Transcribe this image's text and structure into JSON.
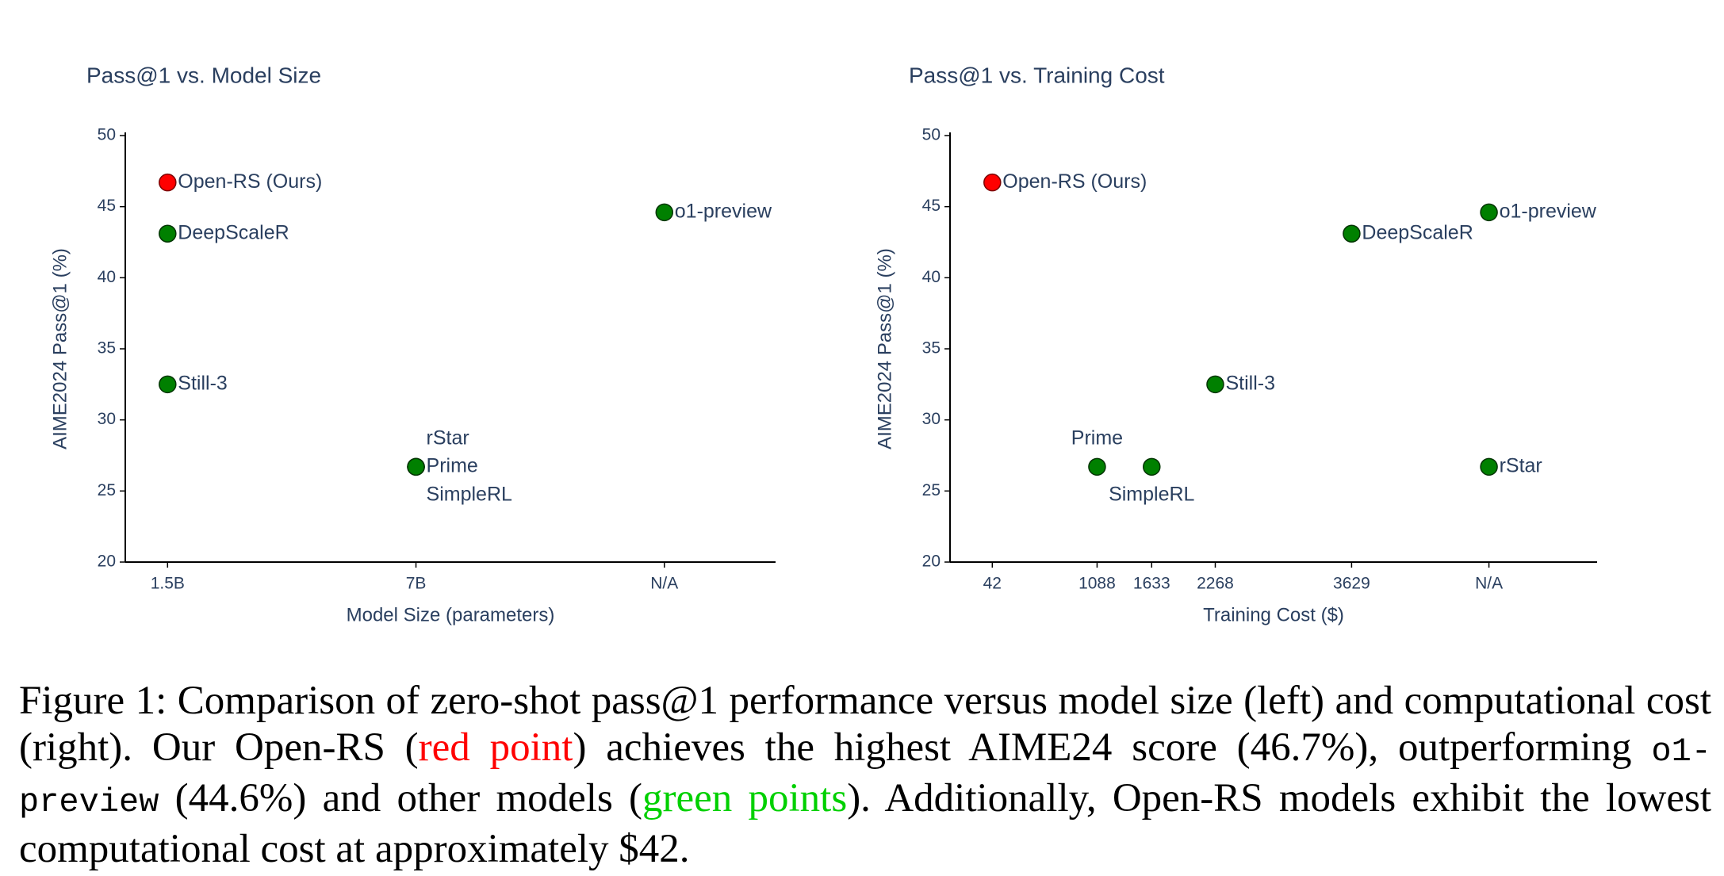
{
  "chart_data": [
    {
      "type": "scatter",
      "title": "Pass@1 vs. Model Size",
      "xlabel": "Model Size (parameters)",
      "ylabel": "AIME2024 Pass@1 (%)",
      "categories": [
        "1.5B",
        "7B",
        "N/A"
      ],
      "ylim": [
        20,
        50
      ],
      "yticks": [
        20,
        25,
        30,
        35,
        40,
        45,
        50
      ],
      "points": [
        {
          "label": "Open-RS (Ours)",
          "x": "1.5B",
          "y": 46.7,
          "color": "#ff0000",
          "label_position": "right"
        },
        {
          "label": "DeepScaleR",
          "x": "1.5B",
          "y": 43.1,
          "color": "#008000",
          "label_position": "right"
        },
        {
          "label": "Still-3",
          "x": "1.5B",
          "y": 32.5,
          "color": "#008000",
          "label_position": "right"
        },
        {
          "label": "rStar",
          "x": "7B",
          "y": 26.7,
          "color": "#008000",
          "label_position": "top right"
        },
        {
          "label": "Prime",
          "x": "7B",
          "y": 26.7,
          "color": "#008000",
          "label_position": "right"
        },
        {
          "label": "SimpleRL",
          "x": "7B",
          "y": 26.7,
          "color": "#008000",
          "label_position": "bottom right"
        },
        {
          "label": "o1-preview",
          "x": "N/A",
          "y": 44.6,
          "color": "#008000",
          "label_position": "right"
        }
      ]
    },
    {
      "type": "scatter",
      "title": "Pass@1 vs. Training Cost",
      "xlabel": "Training Cost ($)",
      "ylabel": "AIME2024 Pass@1 (%)",
      "xlim": [
        -380,
        6080
      ],
      "xticks": [
        42,
        1088,
        1633,
        2268,
        3629,
        {
          "value": 5000,
          "label": "N/A"
        }
      ],
      "ylim": [
        20,
        50
      ],
      "yticks": [
        20,
        25,
        30,
        35,
        40,
        45,
        50
      ],
      "points": [
        {
          "label": "Open-RS (Ours)",
          "x": 42,
          "y": 46.7,
          "color": "#ff0000",
          "label_position": "right"
        },
        {
          "label": "DeepScaleR",
          "x": 3629,
          "y": 43.1,
          "color": "#008000",
          "label_position": "right"
        },
        {
          "label": "Still-3",
          "x": 2268,
          "y": 32.5,
          "color": "#008000",
          "label_position": "right"
        },
        {
          "label": "Prime",
          "x": 1088,
          "y": 26.7,
          "color": "#008000",
          "label_position": "top center"
        },
        {
          "label": "SimpleRL",
          "x": 1633,
          "y": 26.7,
          "color": "#008000",
          "label_position": "bottom center"
        },
        {
          "label": "rStar",
          "x": 5000,
          "y": 26.7,
          "color": "#008000",
          "label_position": "right"
        },
        {
          "label": "o1-preview",
          "x": 5000,
          "y": 44.6,
          "color": "#008000",
          "label_position": "right"
        }
      ]
    }
  ],
  "caption": [
    {
      "text": "Figure 1: Comparison of zero-shot pass@1 performance versus model size (left) and computational cost (right). Our Open-RS ("
    },
    {
      "text": "red point",
      "color": "#ff0000"
    },
    {
      "text": ") achieves the highest AIME24 score (46.7%), outperforming "
    },
    {
      "text": "o1-preview",
      "font": "mono"
    },
    {
      "text": " (44.6%) and other models ("
    },
    {
      "text": "green points",
      "color": "#00d000"
    },
    {
      "text": "). Additionally, Open-RS models exhibit the lowest computational cost at approximately $42."
    }
  ]
}
